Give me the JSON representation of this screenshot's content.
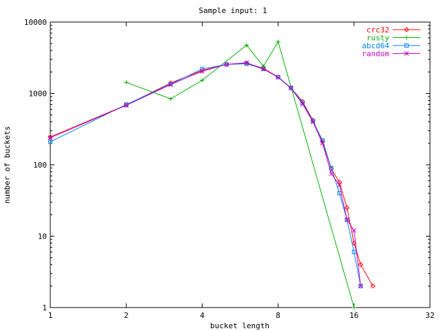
{
  "chart_data": {
    "type": "line",
    "title": "Sample input: 1",
    "xlabel": "bucket length",
    "ylabel": "number of buckets",
    "x_scale": "log2",
    "y_scale": "log10",
    "xlim": [
      1,
      32
    ],
    "ylim": [
      1,
      10000
    ],
    "x_ticks": [
      1,
      2,
      4,
      8,
      16,
      32
    ],
    "x_tick_labels": [
      "1",
      "2",
      "4",
      "8",
      "16",
      "32"
    ],
    "y_ticks": [
      1,
      10,
      100,
      1000,
      10000
    ],
    "y_tick_labels": [
      "1",
      "10",
      "100",
      "1000",
      "10000"
    ],
    "grid": false,
    "legend_position": "top-right",
    "series": [
      {
        "name": "crc32",
        "color": "#ff0000",
        "marker": "diamond",
        "points": [
          [
            1,
            245
          ],
          [
            2,
            690
          ],
          [
            3,
            1400
          ],
          [
            4,
            2100
          ],
          [
            5,
            2550
          ],
          [
            6,
            2650
          ],
          [
            7,
            2250
          ],
          [
            8,
            1700
          ],
          [
            9,
            1200
          ],
          [
            10,
            770
          ],
          [
            11,
            420
          ],
          [
            12,
            210
          ],
          [
            13,
            88
          ],
          [
            14,
            57
          ],
          [
            15,
            25
          ],
          [
            16,
            8
          ],
          [
            17,
            4
          ],
          [
            19,
            2
          ]
        ]
      },
      {
        "name": "rusty",
        "color": "#00b000",
        "marker": "plus",
        "points": [
          [
            2,
            1430
          ],
          [
            3,
            840
          ],
          [
            4,
            1530
          ],
          [
            6,
            4750
          ],
          [
            7,
            2400
          ],
          [
            8,
            5300
          ],
          [
            16,
            1
          ]
        ]
      },
      {
        "name": "abcd64",
        "color": "#0080ff",
        "marker": "square",
        "points": [
          [
            1,
            210
          ],
          [
            2,
            700
          ],
          [
            3,
            1350
          ],
          [
            4,
            2200
          ],
          [
            5,
            2550
          ],
          [
            6,
            2600
          ],
          [
            7,
            2200
          ],
          [
            8,
            1700
          ],
          [
            9,
            1200
          ],
          [
            10,
            740
          ],
          [
            11,
            410
          ],
          [
            12,
            220
          ],
          [
            13,
            90
          ],
          [
            14,
            40
          ],
          [
            15,
            17
          ],
          [
            16,
            6
          ],
          [
            17,
            2
          ]
        ]
      },
      {
        "name": "random",
        "color": "#c000c0",
        "marker": "x",
        "points": [
          [
            1,
            240
          ],
          [
            2,
            680
          ],
          [
            3,
            1330
          ],
          [
            4,
            2050
          ],
          [
            5,
            2550
          ],
          [
            6,
            2700
          ],
          [
            7,
            2200
          ],
          [
            8,
            1680
          ],
          [
            9,
            1180
          ],
          [
            10,
            710
          ],
          [
            11,
            400
          ],
          [
            12,
            200
          ],
          [
            13,
            75
          ],
          [
            14,
            52
          ],
          [
            15,
            17
          ],
          [
            16,
            12
          ],
          [
            17,
            2
          ]
        ]
      }
    ]
  }
}
